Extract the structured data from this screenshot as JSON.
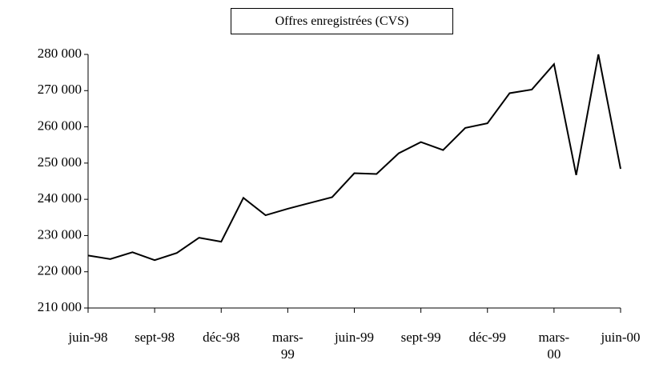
{
  "chart_data": {
    "type": "line",
    "title": "Offres enregistrées (CVS)",
    "categories": [
      "juin-98",
      null,
      null,
      "sept-98",
      null,
      null,
      "déc-98",
      null,
      null,
      "mars-\n99",
      null,
      null,
      "juin-99",
      null,
      null,
      "sept-99",
      null,
      null,
      "déc-99",
      null,
      null,
      "mars-\n00",
      null,
      null,
      "juin-00"
    ],
    "series": [
      {
        "name": "Offres enregistrées",
        "color": "#000000",
        "values": [
          224500,
          223500,
          225400,
          223200,
          225200,
          229400,
          228300,
          240400,
          235600,
          237400,
          239000,
          240600,
          247200,
          247000,
          252700,
          255800,
          253600,
          259700,
          261000,
          269300,
          270300,
          277300,
          246700,
          280000,
          248400
        ]
      }
    ],
    "ylim": [
      210000,
      280000
    ],
    "yticks": [
      {
        "value": 210000,
        "label": "210 000"
      },
      {
        "value": 220000,
        "label": "220 000"
      },
      {
        "value": 230000,
        "label": "230 000"
      },
      {
        "value": 240000,
        "label": "240 000"
      },
      {
        "value": 250000,
        "label": "250 000"
      },
      {
        "value": 260000,
        "label": "260 000"
      },
      {
        "value": 270000,
        "label": "270 000"
      },
      {
        "value": 280000,
        "label": "280 000"
      }
    ]
  }
}
